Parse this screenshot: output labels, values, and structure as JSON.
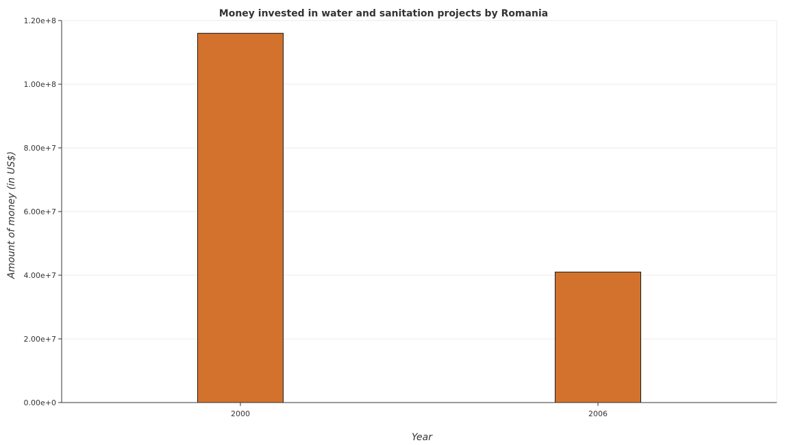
{
  "chart_data": {
    "type": "bar",
    "title": "Money invested in water and sanitation projects by Romania",
    "xlabel": "Year",
    "ylabel": "Amount of money (in US$)",
    "categories": [
      "2000",
      "2006"
    ],
    "values": [
      116000000,
      41000000
    ],
    "ylim": [
      0,
      120000000
    ],
    "yticks": [
      0,
      20000000,
      40000000,
      60000000,
      80000000,
      100000000,
      120000000
    ],
    "ytick_labels": [
      "0.00e+0",
      "2.00e+7",
      "4.00e+7",
      "6.00e+7",
      "8.00e+7",
      "1.00e+8",
      "1.20e+8"
    ],
    "bar_color": "#d2722c",
    "bar_edge_color": "#1a1a1a",
    "grid": true,
    "legend": "none"
  }
}
